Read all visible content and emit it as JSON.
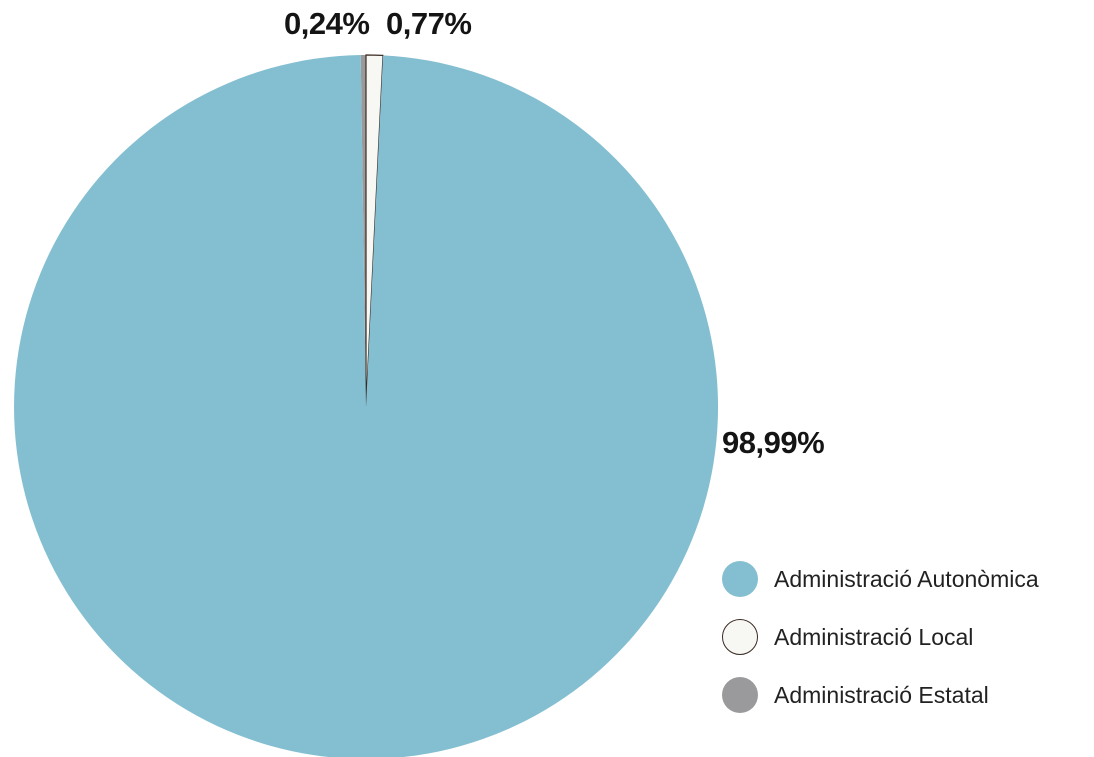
{
  "chart_data": {
    "type": "pie",
    "title": "",
    "slices": [
      {
        "name": "Administració Autonòmica",
        "value": 98.99,
        "label": "98,99%",
        "color": "#84bfd1"
      },
      {
        "name": "Administració Local",
        "value": 0.77,
        "label": "0,77%",
        "color": "#f7f7f4"
      },
      {
        "name": "Administració Estatal",
        "value": 0.24,
        "label": "0,24%",
        "color": "#9a9a9c"
      }
    ],
    "legend_position": "bottom-right",
    "show_legend": true
  }
}
